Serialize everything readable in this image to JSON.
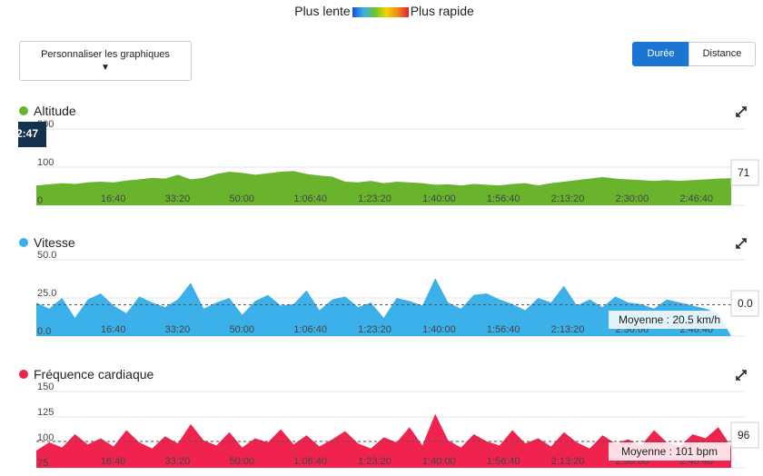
{
  "header": {
    "slow_label": "Plus lente",
    "fast_label": "Plus rapide"
  },
  "controls": {
    "customize": "Personnaliser les graphiques",
    "toggle": [
      "Durée",
      "Distance"
    ]
  },
  "chart_data": [
    {
      "type": "area",
      "title": "Altitude",
      "color": "#6ab42d",
      "cursor_time": "2:47",
      "cursor_value": 71,
      "x": [
        0,
        200,
        400,
        600,
        800,
        1000,
        1200,
        1400,
        1600,
        1800,
        2000,
        2200,
        2400,
        2600,
        2800,
        3000,
        3200,
        3400,
        3600,
        3800,
        4000,
        4200,
        4400,
        4600,
        4800,
        5000,
        5200,
        5400,
        5600,
        5800,
        6000,
        6200,
        6400,
        6600,
        6800,
        7000,
        7200,
        7400,
        7600,
        7800,
        8000,
        8200,
        8400,
        8600,
        8800,
        9000,
        9200,
        9400,
        9600,
        9800,
        10000,
        10200,
        10400,
        10600,
        10800
      ],
      "values": [
        52,
        55,
        58,
        56,
        60,
        62,
        60,
        65,
        68,
        72,
        70,
        80,
        68,
        72,
        82,
        88,
        85,
        80,
        84,
        88,
        90,
        82,
        78,
        75,
        62,
        60,
        64,
        58,
        62,
        60,
        58,
        54,
        55,
        52,
        56,
        54,
        52,
        56,
        58,
        52,
        58,
        62,
        66,
        70,
        74,
        70,
        68,
        66,
        64,
        66,
        64,
        66,
        68,
        70,
        71
      ],
      "xlim": [
        0,
        10800
      ],
      "xticks": [
        {
          "value": 1000,
          "label": "16:40"
        },
        {
          "value": 2000,
          "label": "33:20"
        },
        {
          "value": 3000,
          "label": "50:00"
        },
        {
          "value": 4000,
          "label": "1:06:40"
        },
        {
          "value": 5000,
          "label": "1:23:20"
        },
        {
          "value": 6000,
          "label": "1:40:00"
        },
        {
          "value": 7000,
          "label": "1:56:40"
        },
        {
          "value": 8000,
          "label": "2:13:20"
        },
        {
          "value": 9000,
          "label": "2:30:00"
        },
        {
          "value": 10000,
          "label": "2:46:40"
        }
      ],
      "ylim": [
        0,
        200
      ],
      "yticks": [
        0,
        100,
        200
      ],
      "grid": true
    },
    {
      "type": "area",
      "title": "Vitesse",
      "color": "#3cb0e8",
      "cursor_value": {
        "value": 0,
        "label": "0.0"
      },
      "average": {
        "value": 20.5,
        "label": "Moyenne : 20.5 km/h"
      },
      "x": [
        0,
        200,
        400,
        600,
        800,
        1000,
        1200,
        1400,
        1600,
        1800,
        2000,
        2200,
        2400,
        2600,
        2800,
        3000,
        3200,
        3400,
        3600,
        3800,
        4000,
        4200,
        4400,
        4600,
        4800,
        5000,
        5200,
        5400,
        5600,
        5800,
        6000,
        6200,
        6400,
        6600,
        6800,
        7000,
        7200,
        7400,
        7600,
        7800,
        8000,
        8200,
        8400,
        8600,
        8800,
        9000,
        9200,
        9400,
        9600,
        9800,
        10000,
        10200,
        10400,
        10600,
        10800
      ],
      "values": [
        22,
        18,
        25,
        12,
        24,
        28,
        20,
        15,
        26,
        22,
        19,
        24,
        35,
        18,
        22,
        25,
        14,
        23,
        27,
        20,
        21,
        30,
        17,
        24,
        26,
        19,
        22,
        12,
        25,
        23,
        20,
        38,
        22,
        18,
        27,
        28,
        24,
        21,
        17,
        25,
        22,
        33,
        20,
        24,
        19,
        26,
        22,
        21,
        18,
        24,
        22,
        20,
        18,
        15,
        0
      ],
      "xlim": [
        0,
        10800
      ],
      "xticks": [
        {
          "value": 1000,
          "label": "16:40"
        },
        {
          "value": 2000,
          "label": "33:20"
        },
        {
          "value": 3000,
          "label": "50:00"
        },
        {
          "value": 4000,
          "label": "1:06:40"
        },
        {
          "value": 5000,
          "label": "1:23:20"
        },
        {
          "value": 6000,
          "label": "1:40:00"
        },
        {
          "value": 7000,
          "label": "1:56:40"
        },
        {
          "value": 8000,
          "label": "2:13:20"
        },
        {
          "value": 9000,
          "label": "2:30:00"
        },
        {
          "value": 10000,
          "label": "2:46:40"
        }
      ],
      "ylim": [
        0,
        50
      ],
      "yticks": [
        {
          "value": 0,
          "label": "0.0"
        },
        {
          "value": 25,
          "label": "25.0"
        },
        {
          "value": 50,
          "label": "50.0"
        }
      ],
      "grid": true
    },
    {
      "type": "area",
      "title": "Fréquence cardiaque",
      "color": "#f0234e",
      "cursor_value": 96,
      "average": {
        "value": 101,
        "label": "Moyenne : 101 bpm"
      },
      "x": [
        0,
        200,
        400,
        600,
        800,
        1000,
        1200,
        1400,
        1600,
        1800,
        2000,
        2200,
        2400,
        2600,
        2800,
        3000,
        3200,
        3400,
        3600,
        3800,
        4000,
        4200,
        4400,
        4600,
        4800,
        5000,
        5200,
        5400,
        5600,
        5800,
        6000,
        6200,
        6400,
        6600,
        6800,
        7000,
        7200,
        7400,
        7600,
        7800,
        8000,
        8200,
        8400,
        8600,
        8800,
        9000,
        9200,
        9400,
        9600,
        9800,
        10000,
        10200,
        10400,
        10600,
        10800
      ],
      "values": [
        92,
        100,
        95,
        108,
        98,
        104,
        96,
        112,
        100,
        94,
        106,
        99,
        118,
        102,
        97,
        110,
        95,
        104,
        100,
        113,
        98,
        107,
        96,
        103,
        111,
        99,
        94,
        105,
        100,
        115,
        97,
        128,
        102,
        95,
        108,
        101,
        97,
        112,
        99,
        104,
        96,
        110,
        100,
        94,
        107,
        99,
        103,
        97,
        112,
        100,
        96,
        108,
        104,
        115,
        96
      ],
      "xlim": [
        0,
        10800
      ],
      "xticks": [
        {
          "value": 1000,
          "label": "16:40"
        },
        {
          "value": 2000,
          "label": "33:20"
        },
        {
          "value": 3000,
          "label": "50:00"
        },
        {
          "value": 4000,
          "label": "1:06:40"
        },
        {
          "value": 5000,
          "label": "1:23:20"
        },
        {
          "value": 6000,
          "label": "1:40:00"
        },
        {
          "value": 7000,
          "label": "1:56:40"
        },
        {
          "value": 8000,
          "label": "2:13:20"
        },
        {
          "value": 9000,
          "label": "2:30:00"
        },
        {
          "value": 10000,
          "label": "2:46:40"
        }
      ],
      "ylim": [
        75,
        150
      ],
      "yticks": [
        75,
        100,
        125,
        150
      ],
      "grid": true
    }
  ]
}
